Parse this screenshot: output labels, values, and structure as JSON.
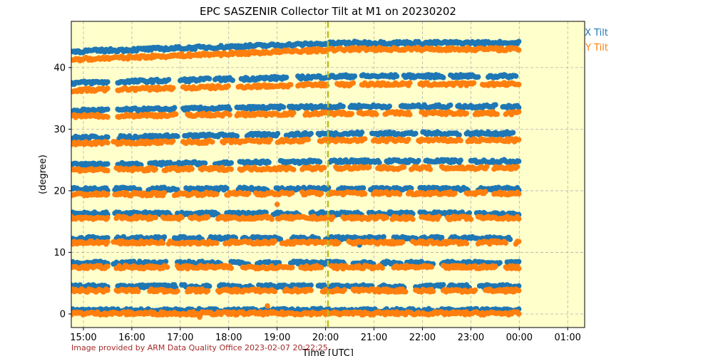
{
  "chart_data": {
    "type": "scatter",
    "title": "EPC SASZENIR Collector Tilt at M1 on 20230202",
    "xlabel": "Time [UTC]",
    "ylabel": "(degree)",
    "xlim": [
      14.75,
      25.35
    ],
    "ylim": [
      -2.2,
      47.5
    ],
    "x_ticks": [
      {
        "value": 15,
        "label": "15:00"
      },
      {
        "value": 16,
        "label": "16:00"
      },
      {
        "value": 17,
        "label": "17:00"
      },
      {
        "value": 18,
        "label": "18:00"
      },
      {
        "value": 19,
        "label": "19:00"
      },
      {
        "value": 20,
        "label": "20:00"
      },
      {
        "value": 21,
        "label": "21:00"
      },
      {
        "value": 22,
        "label": "22:00"
      },
      {
        "value": 23,
        "label": "23:00"
      },
      {
        "value": 24,
        "label": "00:00"
      },
      {
        "value": 25,
        "label": "01:00"
      }
    ],
    "y_ticks": [
      {
        "value": 0,
        "label": "0"
      },
      {
        "value": 10,
        "label": "10"
      },
      {
        "value": 20,
        "label": "20"
      },
      {
        "value": 30,
        "label": "30"
      },
      {
        "value": 40,
        "label": "40"
      }
    ],
    "grid": true,
    "legend_position": "top-right",
    "background_color": "#ffffcc",
    "vline": {
      "x": 20.05,
      "color": "#bcbd22",
      "style": "dashed"
    },
    "data_range": [
      14.75,
      24.0
    ],
    "series": [
      {
        "name": "X Tilt",
        "color": "#1f77b4",
        "levels": [
          {
            "y_start": 0.6,
            "y_end": 0.6
          },
          {
            "y_start": 4.5,
            "y_end": 4.5
          },
          {
            "y_start": 8.3,
            "y_end": 8.3
          },
          {
            "y_start": 12.3,
            "y_end": 12.3
          },
          {
            "y_start": 16.3,
            "y_end": 16.3
          },
          {
            "y_start": 20.3,
            "y_end": 20.3
          },
          {
            "y_start": 24.2,
            "y_end": 24.8
          },
          {
            "y_start": 28.6,
            "y_end": 29.3
          },
          {
            "y_start": 33.0,
            "y_end": 33.7
          },
          {
            "y_start": 37.5,
            "y_end": 38.6
          },
          {
            "y_start": 42.6,
            "y_end": 44.0
          }
        ],
        "extra_points": [
          {
            "x": 19.9,
            "y": 0.9
          },
          {
            "x": 20.7,
            "y": 11.2
          }
        ]
      },
      {
        "name": "Y Tilt",
        "color": "#ff7f0e",
        "levels": [
          {
            "y_start": 0.1,
            "y_end": 0.1
          },
          {
            "y_start": 3.8,
            "y_end": 3.8
          },
          {
            "y_start": 7.6,
            "y_end": 7.6
          },
          {
            "y_start": 11.6,
            "y_end": 11.6
          },
          {
            "y_start": 15.6,
            "y_end": 15.6
          },
          {
            "y_start": 19.4,
            "y_end": 19.6
          },
          {
            "y_start": 23.4,
            "y_end": 23.7
          },
          {
            "y_start": 27.7,
            "y_end": 28.2
          },
          {
            "y_start": 32.1,
            "y_end": 32.6
          },
          {
            "y_start": 36.3,
            "y_end": 37.3
          },
          {
            "y_start": 41.3,
            "y_end": 43.0
          }
        ],
        "extra_points": [
          {
            "x": 19.0,
            "y": 17.8
          },
          {
            "x": 18.8,
            "y": 1.3
          },
          {
            "x": 17.4,
            "y": -0.5
          }
        ]
      }
    ]
  },
  "credit": "Image provided by ARM Data Quality Office 2023-02-07 20:22:25"
}
